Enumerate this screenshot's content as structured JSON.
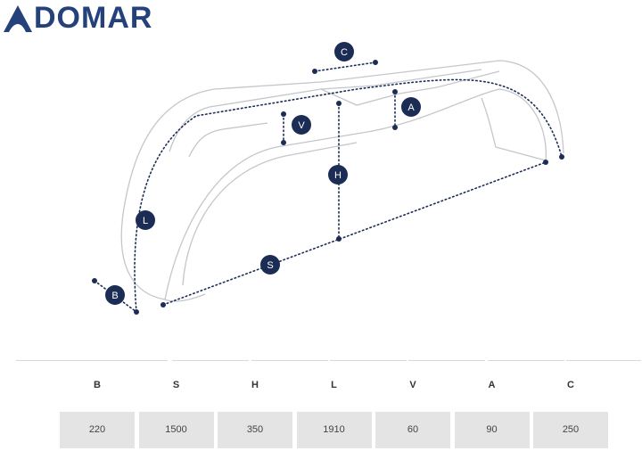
{
  "header": {
    "logo": "DOMAR"
  },
  "diagram": {
    "labels": [
      "C",
      "A",
      "V",
      "H",
      "L",
      "S",
      "B"
    ]
  },
  "table": {
    "columns": [
      "B",
      "S",
      "H",
      "L",
      "V",
      "A",
      "C"
    ],
    "rows": [
      [
        220,
        1500,
        350,
        1910,
        60,
        90,
        250
      ]
    ]
  }
}
